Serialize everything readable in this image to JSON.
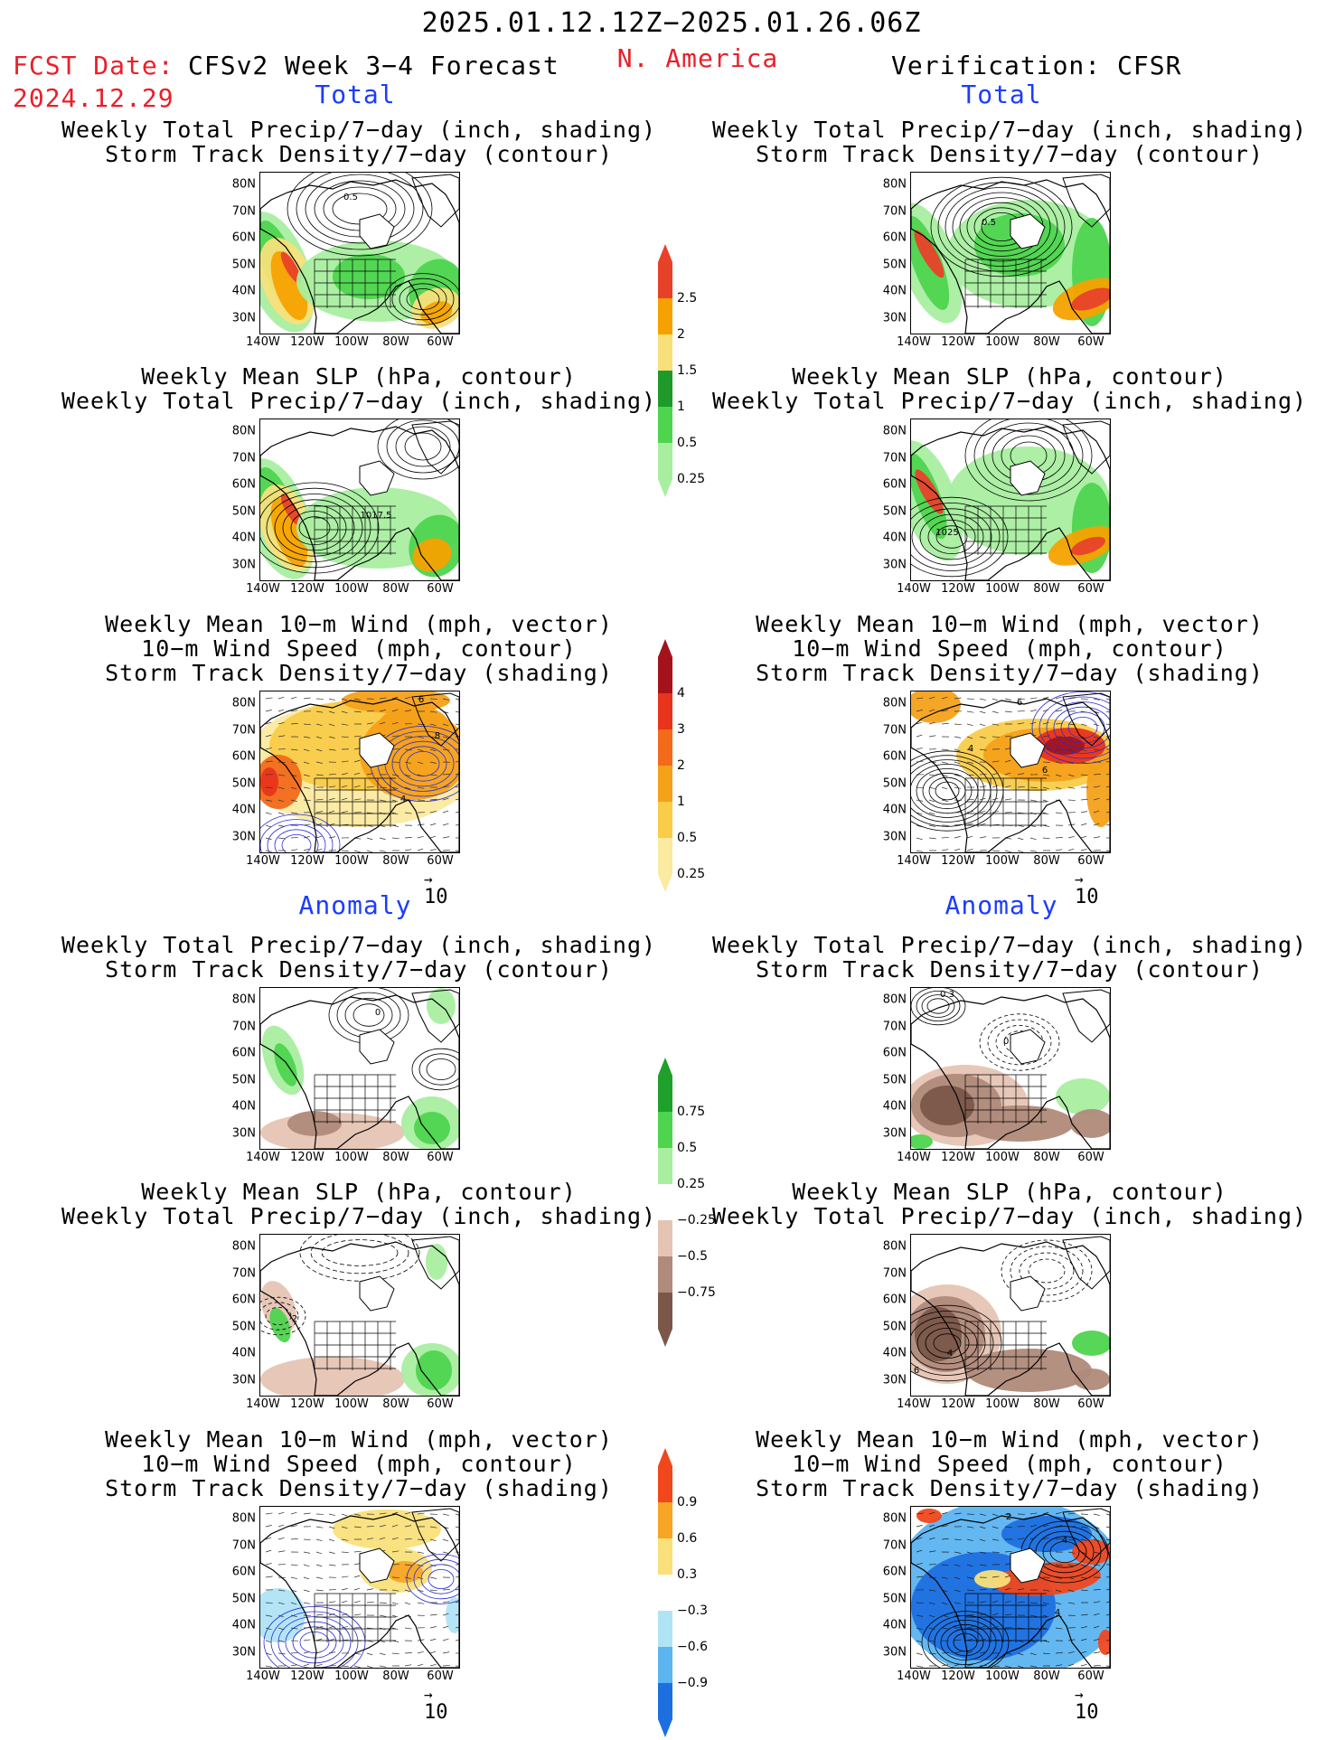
{
  "header": {
    "period": "2025.01.12.12Z−2025.01.26.06Z",
    "fcst_label": "FCST Date:",
    "fcst_date": "2024.12.29",
    "model": "CFSv2 Week 3−4 Forecast",
    "region": "N. America",
    "verification": "Verification: CFSR"
  },
  "sections": {
    "total": "Total",
    "anomaly": "Anomaly"
  },
  "panel_titles": {
    "precip_storm": [
      "Weekly Total Precip/7−day (inch, shading)",
      "Storm Track Density/7−day (contour)"
    ],
    "slp_precip": [
      "Weekly Mean SLP (hPa, contour)",
      "Weekly Total Precip/7−day (inch, shading)"
    ],
    "wind_storm": [
      "Weekly Mean 10−m Wind (mph, vector)",
      "10−m Wind Speed (mph, contour)",
      "Storm Track Density/7−day (shading)"
    ]
  },
  "axes": {
    "lat_labels": [
      "80N",
      "70N",
      "60N",
      "50N",
      "40N",
      "30N"
    ],
    "lon_labels": [
      "140W",
      "120W",
      "100W",
      "80W",
      "60W"
    ]
  },
  "vector_ref": "10",
  "contour_labels": {
    "f_total_precip": "0.5",
    "f_total_slp": "1017.5",
    "o_total_precip": "0.5",
    "o_total_slp": "1025",
    "f_total_wind": [
      "6",
      "8",
      "4"
    ],
    "o_total_wind": [
      "6",
      "6",
      "4"
    ],
    "f_anom_precip": "0",
    "o_anom_precip": [
      "0.3",
      "0.3"
    ],
    "f_anom_slp": "2",
    "o_anom_slp": [
      "4",
      "6"
    ],
    "o_anom_wind": [
      "2",
      "4",
      "4"
    ]
  },
  "colorbars": {
    "precip_total": {
      "labels": [
        "2.5",
        "2",
        "1.5",
        "1",
        "0.5",
        "0.25"
      ],
      "colors": [
        "#e8412a",
        "#f5a200",
        "#f7e07a",
        "#1e9a2b",
        "#4ed44e",
        "#a8eea0"
      ]
    },
    "storm_total": {
      "labels": [
        "4",
        "3",
        "2",
        "1",
        "0.5",
        "0.25"
      ],
      "colors": [
        "#a4131c",
        "#e8341c",
        "#f26a1a",
        "#f5a11a",
        "#f9cc4a",
        "#fbeaa0"
      ]
    },
    "precip_anom": {
      "labels": [
        "0.75",
        "0.5",
        "0.25",
        "−0.25",
        "−0.5",
        "−0.75"
      ],
      "colors": [
        "#1ea02a",
        "#4ed44e",
        "#a8eea0",
        "#ffffff",
        "#e6c4b4",
        "#b08a7a",
        "#7b574a"
      ]
    },
    "storm_anom": {
      "labels": [
        "0.9",
        "0.6",
        "0.3",
        "−0.3",
        "−0.6",
        "−0.9"
      ],
      "colors": [
        "#f0471d",
        "#f7a524",
        "#f9e07a",
        "#ffffff",
        "#b0e4f5",
        "#5cb4f0",
        "#1d6fe0"
      ]
    }
  }
}
